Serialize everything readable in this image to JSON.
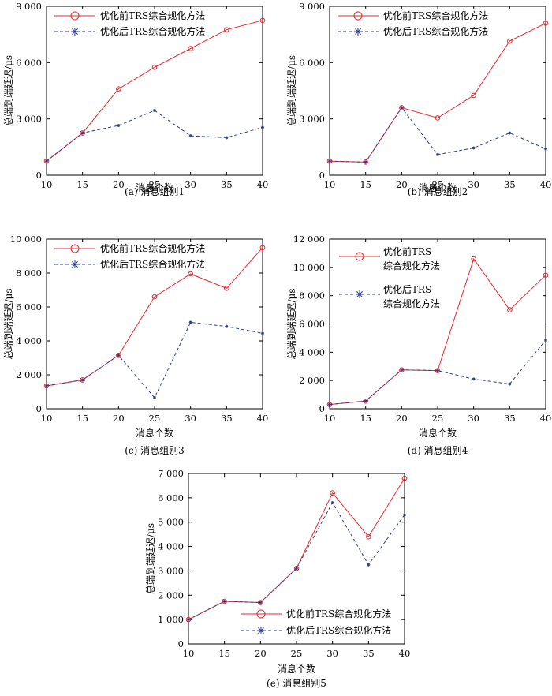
{
  "figure": {
    "y_unit_label": "总端到端延迟/μs",
    "x_label": "消息个数"
  },
  "chart_data": [
    {
      "type": "line",
      "caption": "(a) 消息组别1",
      "xlabel": "消息个数",
      "ylabel": "总端到端延迟/μs",
      "x": [
        10,
        15,
        20,
        25,
        30,
        35,
        40
      ],
      "xlim": [
        10,
        40
      ],
      "ylim": [
        0,
        9000
      ],
      "yticks": [
        0,
        3000,
        6000,
        9000
      ],
      "ytick_labels": [
        "0",
        "3 000",
        "6 000",
        "9 000"
      ],
      "legend_position": "top-left",
      "series": [
        {
          "name": "优化前TRS综合规化方法",
          "color": "#e8262c",
          "style": "solid",
          "marker": "circle",
          "values": [
            750,
            2250,
            4600,
            5750,
            6750,
            7750,
            8250
          ]
        },
        {
          "name": "优化后TRS综合规化方法",
          "color": "#2e3a8c",
          "style": "dashed",
          "marker": "star",
          "values": [
            750,
            2250,
            2650,
            3450,
            2100,
            2000,
            2550
          ]
        }
      ]
    },
    {
      "type": "line",
      "caption": "(b) 消息组别2",
      "xlabel": "消息个数",
      "ylabel": "总端到端延迟/μs",
      "x": [
        10,
        15,
        20,
        25,
        30,
        35,
        40
      ],
      "xlim": [
        10,
        40
      ],
      "ylim": [
        0,
        9000
      ],
      "yticks": [
        0,
        3000,
        6000,
        9000
      ],
      "ytick_labels": [
        "0",
        "3 000",
        "6 000",
        "9 000"
      ],
      "legend_position": "top-left",
      "series": [
        {
          "name": "优化前TRS综合规化方法",
          "color": "#e8262c",
          "style": "solid",
          "marker": "circle",
          "values": [
            750,
            700,
            3600,
            3050,
            4250,
            7150,
            8100
          ]
        },
        {
          "name": "优化后TRS综合规化方法",
          "color": "#2e3a8c",
          "style": "dashed",
          "marker": "star",
          "values": [
            750,
            700,
            3600,
            1100,
            1450,
            2250,
            1400
          ]
        }
      ]
    },
    {
      "type": "line",
      "caption": "(c) 消息组别3",
      "xlabel": "消息个数",
      "ylabel": "总端到端延迟/μs",
      "x": [
        10,
        15,
        20,
        25,
        30,
        35,
        40
      ],
      "xlim": [
        10,
        40
      ],
      "ylim": [
        0,
        10000
      ],
      "yticks": [
        0,
        2000,
        4000,
        6000,
        8000,
        10000
      ],
      "ytick_labels": [
        "0",
        "2 000",
        "4 000",
        "6 000",
        "8 000",
        "10 000"
      ],
      "legend_position": "top-left",
      "series": [
        {
          "name": "优化前TRS综合规化方法",
          "color": "#e8262c",
          "style": "solid",
          "marker": "circle",
          "values": [
            1350,
            1700,
            3150,
            6600,
            7950,
            7100,
            9500
          ]
        },
        {
          "name": "优化后TRS综合规化方法",
          "color": "#2e3a8c",
          "style": "dashed",
          "marker": "star",
          "values": [
            1350,
            1700,
            3150,
            650,
            5100,
            4850,
            4450
          ]
        }
      ]
    },
    {
      "type": "line",
      "caption": "(d) 消息组别4",
      "xlabel": "消息个数",
      "ylabel": "总端到端延迟/μs",
      "x": [
        10,
        15,
        20,
        25,
        30,
        35,
        40
      ],
      "xlim": [
        10,
        40
      ],
      "ylim": [
        0,
        12000
      ],
      "yticks": [
        0,
        2000,
        4000,
        6000,
        8000,
        10000,
        12000
      ],
      "ytick_labels": [
        "0",
        "2 000",
        "4 000",
        "6 000",
        "8 000",
        "10 000",
        "12 000"
      ],
      "legend_position": "top-left",
      "legend_wrap": true,
      "series": [
        {
          "name": "优化前TRS综合规化方法",
          "name_lines": [
            "优化前TRS",
            "综合规化方法"
          ],
          "color": "#e8262c",
          "style": "solid",
          "marker": "circle",
          "values": [
            300,
            550,
            2750,
            2700,
            10600,
            7000,
            9450
          ]
        },
        {
          "name": "优化后TRS综合规化方法",
          "name_lines": [
            "优化后TRS",
            "综合规化方法"
          ],
          "color": "#2e3a8c",
          "style": "dashed",
          "marker": "star",
          "values": [
            300,
            550,
            2750,
            2700,
            2100,
            1750,
            4850
          ]
        }
      ]
    },
    {
      "type": "line",
      "caption": "(e) 消息组别5",
      "xlabel": "消息个数",
      "ylabel": "总端到端延迟/μs",
      "x": [
        10,
        15,
        20,
        25,
        30,
        35,
        40
      ],
      "xlim": [
        10,
        40
      ],
      "ylim": [
        0,
        7000
      ],
      "yticks": [
        0,
        1000,
        2000,
        3000,
        4000,
        5000,
        6000,
        7000
      ],
      "ytick_labels": [
        "0",
        "1 000",
        "2 000",
        "3 000",
        "4 000",
        "5 000",
        "6 000",
        "7 000"
      ],
      "legend_position": "bottom-right",
      "series": [
        {
          "name": "优化前TRS综合规化方法",
          "color": "#e8262c",
          "style": "solid",
          "marker": "circle",
          "values": [
            1000,
            1750,
            1700,
            3100,
            6200,
            4400,
            6800
          ]
        },
        {
          "name": "优化后TRS综合规化方法",
          "color": "#2e3a8c",
          "style": "dashed",
          "marker": "star",
          "values": [
            1000,
            1750,
            1700,
            3100,
            5800,
            3250,
            5300
          ]
        }
      ]
    }
  ]
}
